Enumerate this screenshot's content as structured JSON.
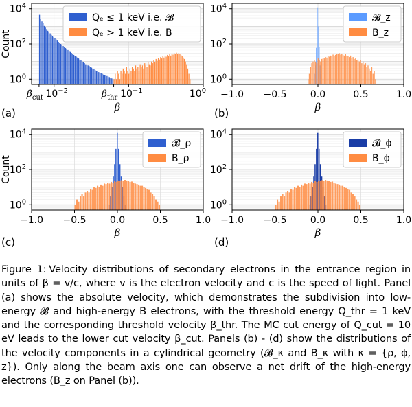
{
  "chart_data": [
    {
      "panel_id": "(a)",
      "type": "bar",
      "xscale": "log",
      "yscale": "log",
      "xlim": [
        0.005,
        1.0
      ],
      "ylim": [
        0.5,
        20000
      ],
      "xlabel": "β",
      "ylabel": "Count",
      "xticks": [
        {
          "value": 0.01,
          "label": "10⁻²"
        },
        {
          "value": 0.1,
          "label": "10⁻¹"
        },
        {
          "value": 1.0,
          "label": "10⁰"
        }
      ],
      "special_ticks": [
        {
          "value": 0.0063,
          "label": "β_cut"
        },
        {
          "value": 0.063,
          "label": "β_thr"
        }
      ],
      "yticks": [
        {
          "value": 1,
          "label": "10⁰"
        },
        {
          "value": 100,
          "label": "10²"
        },
        {
          "value": 10000,
          "label": "10⁴"
        }
      ],
      "legend_position": "top-right",
      "series": [
        {
          "name": "Qₑ ≤ 1 keV i.e. 𝓑",
          "color": "#2f5fcf",
          "x_range": [
            0.0063,
            0.063
          ],
          "values": [
            4500,
            2600,
            1900,
            1500,
            1050,
            850,
            700,
            560,
            480,
            400,
            330,
            280,
            240,
            205,
            180,
            155,
            130,
            115,
            100,
            86,
            76,
            66,
            58,
            51,
            45,
            40,
            35,
            31,
            27,
            24,
            21,
            19,
            17,
            15,
            13,
            12,
            10,
            9,
            8,
            7,
            6.5,
            6,
            5.5,
            5,
            4.5,
            4,
            3.6,
            3.3,
            3,
            2.8,
            2.5,
            2.3,
            2.1,
            2,
            1.8,
            1.7,
            1.6,
            1.5,
            1.4,
            1.3,
            1.2,
            1.1,
            1
          ]
        },
        {
          "name": "Qₑ > 1 keV i.e. B",
          "color": "#ff8c42",
          "x_range": [
            0.063,
            0.68
          ],
          "values": [
            1,
            2,
            1,
            3,
            2,
            1,
            3,
            2,
            4,
            3,
            2,
            5,
            3,
            2,
            4,
            3,
            5,
            4,
            3,
            6,
            4,
            5,
            3,
            7,
            5,
            6,
            4,
            8,
            6,
            5,
            9,
            7,
            6,
            10,
            8,
            12,
            9,
            14,
            11,
            16,
            13,
            18,
            15,
            20,
            17,
            22,
            19,
            24,
            20,
            26,
            22,
            28,
            25,
            30,
            27,
            32,
            28,
            30,
            26,
            24,
            20,
            17,
            14,
            10,
            7,
            4,
            2,
            1
          ]
        }
      ]
    },
    {
      "panel_id": "(b)",
      "type": "bar",
      "xscale": "linear",
      "yscale": "log",
      "xlim": [
        -1.0,
        1.0
      ],
      "ylim": [
        0.5,
        20000
      ],
      "xlabel": "β",
      "ylabel": "",
      "xticks": [
        {
          "value": -1.0,
          "label": "−1.0"
        },
        {
          "value": -0.5,
          "label": "−0.5"
        },
        {
          "value": 0.0,
          "label": "0.0"
        },
        {
          "value": 0.5,
          "label": "0.5"
        },
        {
          "value": 1.0,
          "label": "1.0"
        }
      ],
      "yticks": [
        {
          "value": 1,
          "label": "10⁰"
        },
        {
          "value": 100,
          "label": "10²"
        },
        {
          "value": 10000,
          "label": "10⁴"
        }
      ],
      "legend_position": "top-right",
      "series": [
        {
          "name": "𝓑_z",
          "color": "#5b9bff",
          "x_range": [
            -0.04,
            0.04
          ],
          "values": [
            2,
            6,
            60,
            900,
            12000,
            1000,
            70,
            6,
            2
          ]
        },
        {
          "name": "B_z",
          "color": "#ff8c42",
          "x_range": [
            -0.12,
            0.68
          ],
          "values": [
            1,
            2,
            5,
            8,
            10,
            12,
            9,
            8,
            15,
            12,
            10,
            14,
            16,
            15,
            18,
            17,
            20,
            19,
            22,
            20,
            25,
            22,
            24,
            28,
            26,
            30,
            25,
            28,
            24,
            22,
            26,
            22,
            20,
            18,
            22,
            16,
            18,
            14,
            15,
            12,
            13,
            10,
            12,
            8,
            10,
            7,
            8,
            5,
            6,
            4,
            3,
            5,
            2,
            3,
            1
          ]
        }
      ]
    },
    {
      "panel_id": "(c)",
      "type": "bar",
      "xscale": "linear",
      "yscale": "log",
      "xlim": [
        -1.0,
        1.0
      ],
      "ylim": [
        0.5,
        20000
      ],
      "xlabel": "β",
      "ylabel": "Count",
      "xticks": [
        {
          "value": -1.0,
          "label": "−1.0"
        },
        {
          "value": -0.5,
          "label": "−0.5"
        },
        {
          "value": 0.0,
          "label": "0.0"
        },
        {
          "value": 0.5,
          "label": "0.5"
        },
        {
          "value": 1.0,
          "label": "1.0"
        }
      ],
      "yticks": [
        {
          "value": 1,
          "label": "10⁰"
        },
        {
          "value": 100,
          "label": "10²"
        },
        {
          "value": 10000,
          "label": "10⁴"
        }
      ],
      "legend_position": "top-right",
      "series": [
        {
          "name": "𝓑_ρ",
          "color": "#2f5fcf",
          "x_range": [
            -0.1,
            0.1
          ],
          "values": [
            1,
            3,
            10,
            40,
            200,
            1500,
            12000,
            1500,
            200,
            40,
            10,
            3,
            1
          ]
        },
        {
          "name": "B_ρ",
          "color": "#ff8c42",
          "x_range": [
            -0.5,
            0.5
          ],
          "values": [
            1,
            2,
            1.5,
            3,
            4,
            3,
            5,
            6,
            5,
            8,
            7,
            10,
            9,
            12,
            10,
            14,
            12,
            16,
            15,
            18,
            16,
            20,
            18,
            22,
            20,
            24,
            22,
            25,
            22,
            26,
            24,
            22,
            20,
            21,
            18,
            16,
            15,
            14,
            12,
            12,
            10,
            9,
            8,
            7,
            5,
            4,
            3,
            2,
            1.5,
            1
          ]
        }
      ]
    },
    {
      "panel_id": "(d)",
      "type": "bar",
      "xscale": "linear",
      "yscale": "log",
      "xlim": [
        -1.0,
        1.0
      ],
      "ylim": [
        0.5,
        20000
      ],
      "xlabel": "β",
      "ylabel": "",
      "xticks": [
        {
          "value": -1.0,
          "label": "−1.0"
        },
        {
          "value": -0.5,
          "label": "−0.5"
        },
        {
          "value": 0.0,
          "label": "0.0"
        },
        {
          "value": 0.5,
          "label": "0.5"
        },
        {
          "value": 1.0,
          "label": "1.0"
        }
      ],
      "yticks": [
        {
          "value": 1,
          "label": "10⁰"
        },
        {
          "value": 100,
          "label": "10²"
        },
        {
          "value": 10000,
          "label": "10⁴"
        }
      ],
      "legend_position": "top-right",
      "series": [
        {
          "name": "𝓑_ϕ",
          "color": "#1a3da6",
          "x_range": [
            -0.1,
            0.1
          ],
          "values": [
            1,
            3,
            10,
            40,
            200,
            1500,
            12000,
            1500,
            200,
            40,
            10,
            3,
            1
          ]
        },
        {
          "name": "B_ϕ",
          "color": "#ff8c42",
          "x_range": [
            -0.5,
            0.5
          ],
          "values": [
            1,
            2,
            1.5,
            3,
            4,
            3,
            5,
            6,
            5,
            8,
            7,
            10,
            9,
            12,
            10,
            14,
            12,
            16,
            15,
            18,
            16,
            20,
            18,
            22,
            20,
            24,
            22,
            25,
            22,
            26,
            24,
            22,
            20,
            21,
            18,
            16,
            15,
            14,
            12,
            12,
            10,
            9,
            8,
            7,
            5,
            4,
            3,
            2,
            1.5,
            1
          ]
        }
      ]
    }
  ],
  "caption": {
    "label": "Figure 1:",
    "text": "Velocity distributions of secondary electrons in the entrance region in units of β = v/c, where v is the electron velocity and c is the speed of light. Panel (a) shows the absolute velocity, which demonstrates the subdivision into low-energy 𝓑 and high-energy B electrons, with the threshold energy Q_thr = 1 keV and the corresponding threshold velocity β_thr. The MC cut energy of Q_cut = 10 eV leads to the lower cut velocity β_cut. Panels (b) - (d) show the distributions of the velocity components in a cylindrical geometry (𝓑_κ and B_κ with κ = {ρ, ϕ, z}). Only along the beam axis one can observe a net drift of the high-energy electrons (B_z on Panel (b))."
  }
}
